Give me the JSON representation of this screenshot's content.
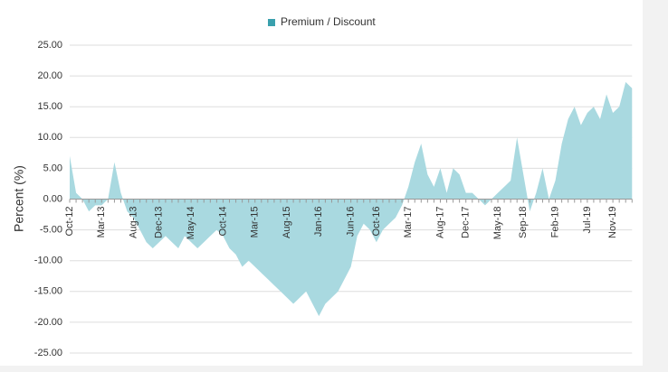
{
  "chart_data": {
    "type": "area",
    "legend": "Premium / Discount",
    "ylabel": "Percent (%)",
    "color": "#a9d9e0",
    "legend_color": "#3aa0ad",
    "grid": true,
    "categories": [
      "Oct-12",
      null,
      null,
      null,
      null,
      "Mar-13",
      null,
      null,
      null,
      null,
      "Aug-13",
      null,
      null,
      null,
      "Dec-13",
      null,
      null,
      null,
      null,
      "May-14",
      null,
      null,
      null,
      null,
      "Oct-14",
      null,
      null,
      null,
      null,
      "Mar-15",
      null,
      null,
      null,
      null,
      "Aug-15",
      null,
      null,
      null,
      null,
      "Jan-16",
      null,
      null,
      null,
      null,
      "Jun-16",
      null,
      null,
      null,
      "Oct-16",
      null,
      null,
      null,
      null,
      "Mar-17",
      null,
      null,
      null,
      null,
      "Aug-17",
      null,
      null,
      null,
      "Dec-17",
      null,
      null,
      null,
      null,
      "May-18",
      null,
      null,
      null,
      "Sep-18",
      null,
      null,
      null,
      null,
      "Feb-19",
      null,
      null,
      null,
      null,
      "Jul-19",
      null,
      null,
      null,
      "Nov-19",
      null,
      null,
      null
    ],
    "values": [
      7,
      1,
      0,
      -2,
      -1,
      -1,
      0,
      6,
      1,
      -2,
      -3,
      -5,
      -7,
      -8,
      -7,
      -6,
      -7,
      -8,
      -6,
      -7,
      -8,
      -7,
      -6,
      -5,
      -6,
      -8,
      -9,
      -11,
      -10,
      -11,
      -12,
      -13,
      -14,
      -15,
      -16,
      -17,
      -16,
      -15,
      -17,
      -19,
      -17,
      -16,
      -15,
      -13,
      -11,
      -6,
      -4,
      -5,
      -7,
      -5,
      -4,
      -3,
      -1,
      2,
      6,
      9,
      4,
      2,
      5,
      1,
      5,
      4,
      1,
      1,
      0,
      -1,
      0,
      1,
      2,
      3,
      10,
      4,
      -2,
      1,
      5,
      0,
      3,
      9,
      13,
      15,
      12,
      14,
      15,
      13,
      17,
      14,
      15,
      19,
      18
    ],
    "ylim": [
      -25,
      25
    ],
    "yticks": [
      {
        "value": 25,
        "label": "25.00"
      },
      {
        "value": 20,
        "label": "20.00"
      },
      {
        "value": 15,
        "label": "15.00"
      },
      {
        "value": 10,
        "label": "10.00"
      },
      {
        "value": 5,
        "label": "5.00"
      },
      {
        "value": 0,
        "label": "0.00"
      },
      {
        "value": -5,
        "label": "-5.00"
      },
      {
        "value": -10,
        "label": "-10.00"
      },
      {
        "value": -15,
        "label": "-15.00"
      },
      {
        "value": -20,
        "label": "-20.00"
      },
      {
        "value": -25,
        "label": "-25.00"
      }
    ]
  }
}
